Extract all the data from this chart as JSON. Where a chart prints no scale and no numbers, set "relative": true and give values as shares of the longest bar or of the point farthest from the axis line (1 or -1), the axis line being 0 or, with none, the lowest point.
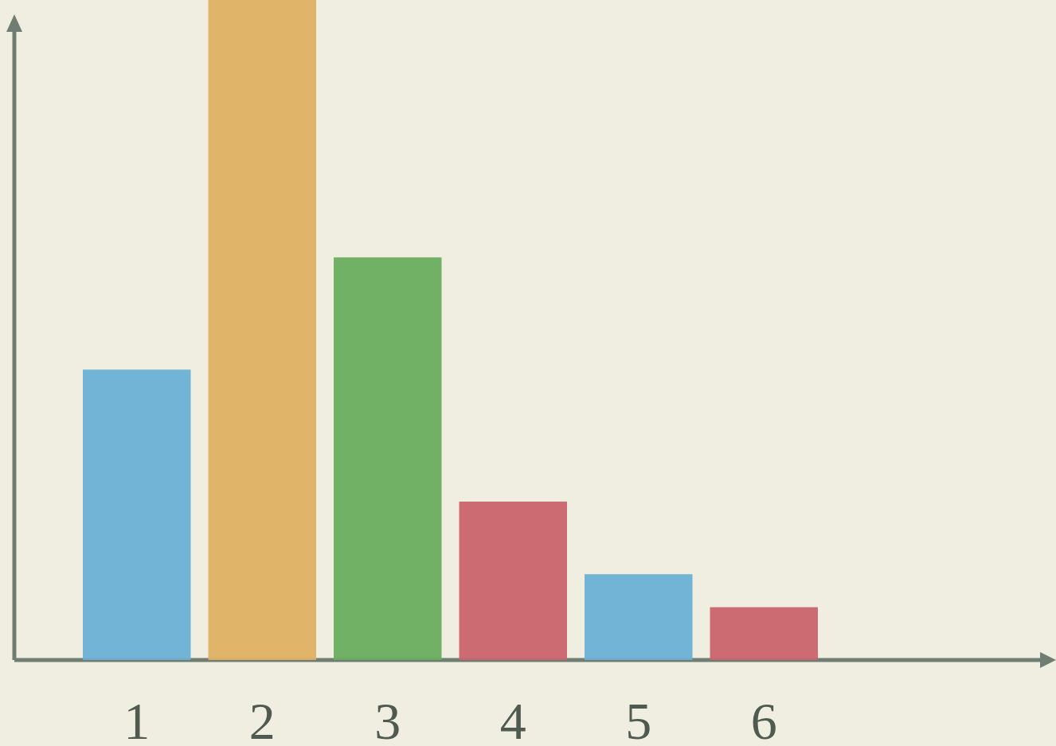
{
  "chart_data": {
    "type": "bar",
    "relative": true,
    "categories": [
      "1",
      "2",
      "3",
      "4",
      "5",
      "6"
    ],
    "values": [
      0.44,
      1,
      0.61,
      0.24,
      0.13,
      0.08
    ],
    "colors": [
      "#6ab0d4",
      "#deb062",
      "#68ad5f",
      "#c9636c",
      "#6ab0d4",
      "#c9636c"
    ]
  }
}
